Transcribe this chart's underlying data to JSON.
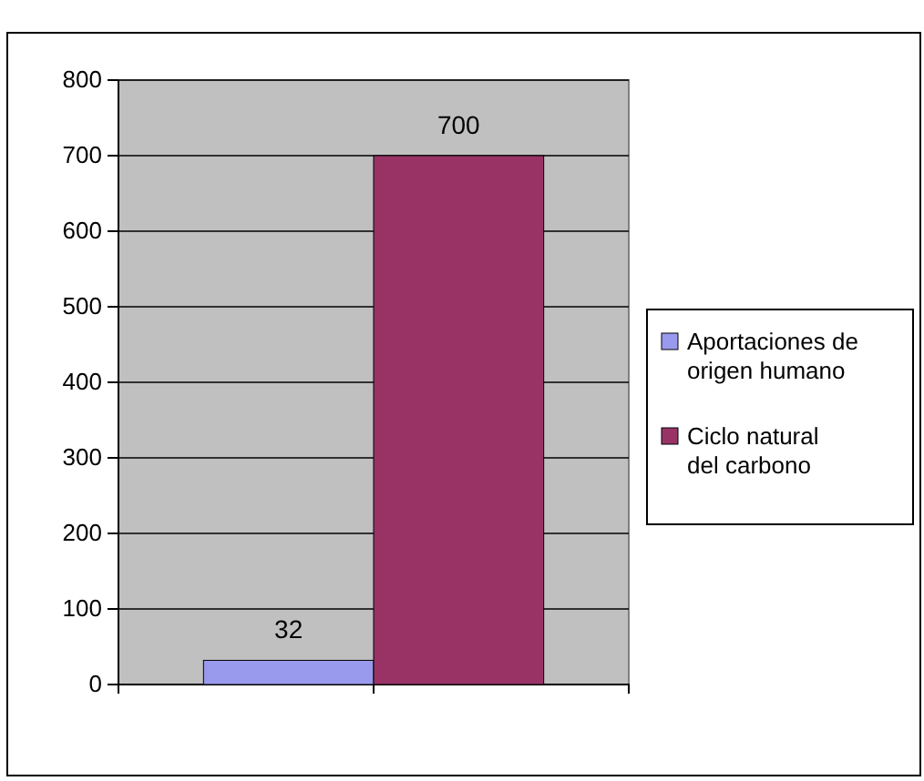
{
  "chart_data": {
    "type": "bar",
    "categories": [
      null
    ],
    "series": [
      {
        "name": "Aportaciones de origen humano",
        "color": "#9999ee",
        "values": [
          32
        ]
      },
      {
        "name": "Ciclo natural del carbono",
        "color": "#993366",
        "values": [
          700
        ]
      }
    ],
    "ylim": [
      0,
      800
    ],
    "yticks": [
      0,
      100,
      200,
      300,
      400,
      500,
      600,
      700,
      800
    ],
    "grid": "y",
    "legend": "right",
    "data_labels": true
  }
}
